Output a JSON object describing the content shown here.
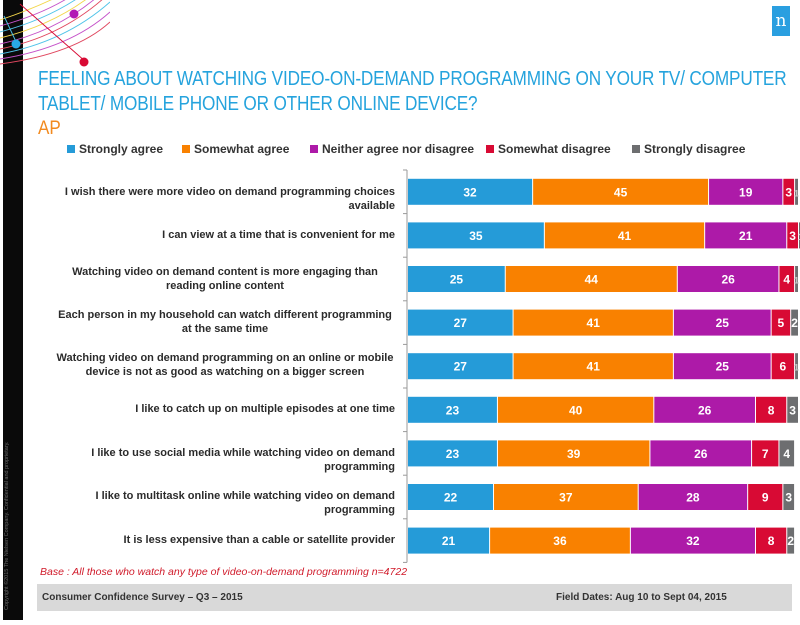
{
  "header": {
    "title_line1": "FEELING ABOUT WATCHING VIDEO-ON-DEMAND PROGRAMMING ON YOUR TV/ COMPUTER",
    "title_line2": "TABLET/ MOBILE PHONE OR OTHER ONLINE DEVICE?",
    "region": "AP",
    "logo_glyph": "n",
    "title_color": "#25a3dd",
    "region_color": "#f28a1f"
  },
  "sidebar": {
    "copyright": "Copyright ©2015 The Nielsen Company. Confidential and proprietary."
  },
  "chart_data": {
    "type": "bar",
    "orientation": "horizontal",
    "stacked": true,
    "title": "FEELING ABOUT WATCHING VIDEO-ON-DEMAND PROGRAMMING ON YOUR TV/ COMPUTER TABLET/ MOBILE PHONE OR OTHER ONLINE DEVICE?",
    "subtitle": "AP",
    "xlabel": "",
    "ylabel": "",
    "xlim": [
      0,
      100
    ],
    "grid": false,
    "legend_position": "top",
    "categories": [
      "I wish there were more video on demand programming choices available",
      "I can view at a time that is convenient for me",
      "Watching video on demand content is more engaging than reading online content",
      "Each person in my household can watch different programming at the same time",
      "Watching video on demand programming on an online or mobile device is not as good as watching on a bigger screen",
      "I like to catch up on multiple episodes at one time",
      "I like to use social media while watching video on demand programming",
      "I like to multitask online while watching video on demand programming",
      "It is less expensive than a cable or satellite provider"
    ],
    "series": [
      {
        "name": "Strongly agree",
        "color": "#259bd8",
        "values": [
          32,
          35,
          25,
          27,
          27,
          23,
          23,
          22,
          21
        ]
      },
      {
        "name": "Somewhat agree",
        "color": "#f98100",
        "values": [
          45,
          41,
          44,
          41,
          41,
          40,
          39,
          37,
          36
        ]
      },
      {
        "name": "Neither agree nor disagree",
        "color": "#ad1aa8",
        "values": [
          19,
          21,
          26,
          25,
          25,
          26,
          26,
          28,
          32
        ]
      },
      {
        "name": "Somewhat disagree",
        "color": "#d80a34",
        "values": [
          3,
          3,
          4,
          5,
          6,
          8,
          7,
          9,
          8
        ]
      },
      {
        "name": "Strongly disagree",
        "color": "#6d6e70",
        "values": [
          1,
          1,
          1,
          2,
          1,
          3,
          4,
          3,
          2
        ]
      }
    ]
  },
  "notes": {
    "base": "Base : All those who watch any type of video-on-demand programming n=4722"
  },
  "footer": {
    "survey": "Consumer Confidence Survey – Q3 – 2015",
    "field_dates": "Field Dates: Aug 10 to Sept 04, 2015"
  }
}
